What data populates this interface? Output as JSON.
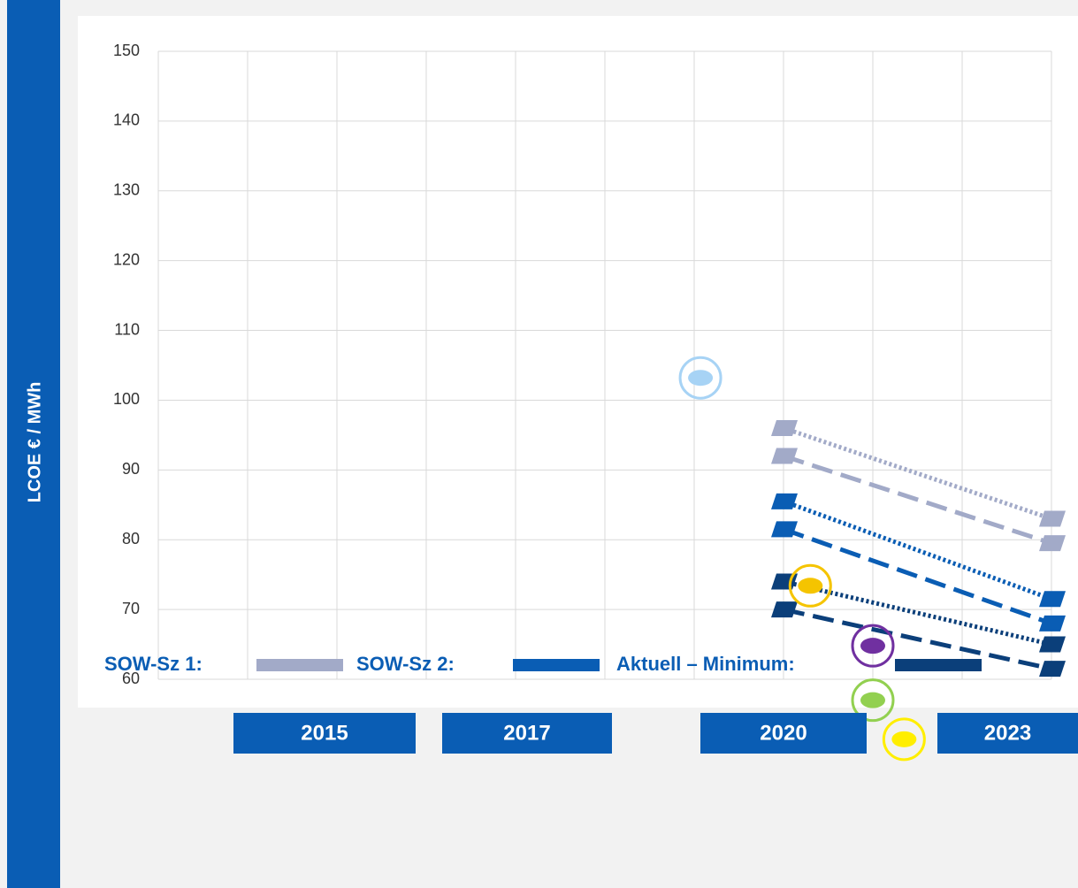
{
  "chart_data": {
    "type": "line",
    "ylabel": "LCOE € / MWh",
    "ylim": [
      60,
      150
    ],
    "yticks": [
      60,
      70,
      80,
      90,
      100,
      110,
      120,
      130,
      140,
      150
    ],
    "xlim": [
      2013,
      2023
    ],
    "xgrid": [
      2013,
      2014,
      2015,
      2016,
      2017,
      2018,
      2019,
      2020,
      2021,
      2022,
      2023
    ],
    "grid": true,
    "year_labels": [
      "2015",
      "2017",
      "2020",
      "2023"
    ],
    "series": [
      {
        "name": "SOW-Sz 1:",
        "color": "#a2aac8",
        "x": [
          2020,
          2023
        ],
        "dotted": [
          96,
          83
        ],
        "dashed": [
          92,
          79.5
        ]
      },
      {
        "name": "SOW-Sz 2:",
        "color": "#0a5db4",
        "x": [
          2020,
          2023
        ],
        "dotted": [
          85.5,
          71.5
        ],
        "dashed": [
          81.5,
          68
        ]
      },
      {
        "name": "Aktuell – Minimum:",
        "color": "#0b3f7a",
        "x": [
          2020,
          2023
        ],
        "dotted": [
          74,
          65
        ],
        "dashed": [
          70,
          61.5
        ]
      }
    ],
    "points": [
      {
        "x": 2019.07,
        "y": 103.2,
        "color": "#a7d3f5"
      },
      {
        "x": 2020.3,
        "y": 73.4,
        "color": "#f5c400"
      },
      {
        "x": 2021,
        "y": 64.8,
        "color": "#7030a0"
      },
      {
        "x": 2021,
        "y": 57,
        "color": "#92d050"
      },
      {
        "x": 2021.35,
        "y": 51.4,
        "color": "#ffee00"
      }
    ]
  }
}
